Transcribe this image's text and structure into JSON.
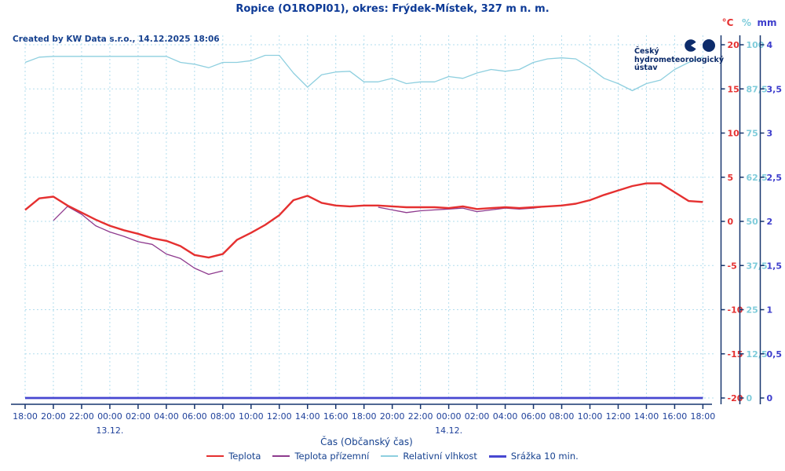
{
  "title": "Ropice (O1ROPI01), okres: Frýdek-Místek, 327 m n. m.",
  "created_by": "Created by KW Data s.r.o., 14.12.2025 18:06",
  "logo": {
    "line1": "Český",
    "line2": "hydrometeorologický",
    "line3": "ústav"
  },
  "axes": {
    "temp": {
      "header": "°C",
      "color": "#e53030",
      "ticks": [
        "20",
        "15",
        "10",
        "5",
        "0",
        "-5",
        "-10",
        "-15",
        "-20"
      ]
    },
    "humidity": {
      "header": "%",
      "color": "#7fccdb",
      "ticks": [
        "100",
        "87,5",
        "75",
        "62,5",
        "50",
        "37,5",
        "25",
        "12,5",
        "0"
      ]
    },
    "precip": {
      "header": "mm",
      "color": "#3d3dcc",
      "ticks": [
        "4",
        "3,5",
        "3",
        "2,5",
        "2",
        "1,5",
        "1",
        "0,5",
        "0"
      ]
    }
  },
  "x_axis": {
    "title": "Čas (Občanský čas)",
    "tick_labels": [
      "18:00",
      "20:00",
      "22:00",
      "00:00",
      "02:00",
      "04:00",
      "06:00",
      "08:00",
      "10:00",
      "12:00",
      "14:00",
      "16:00",
      "18:00",
      "20:00",
      "22:00",
      "00:00",
      "02:00",
      "04:00",
      "06:00",
      "08:00",
      "10:00",
      "12:00",
      "14:00",
      "16:00",
      "18:00"
    ],
    "date_labels": [
      {
        "label": "13.12.",
        "tick_index": 3
      },
      {
        "label": "14.12.",
        "tick_index": 15
      }
    ]
  },
  "legend": [
    {
      "label": "Teplota",
      "color": "#e53030"
    },
    {
      "label": "Teplota přízemní",
      "color": "#8e3a8e"
    },
    {
      "label": "Relativní vlhkost",
      "color": "#8ecfdf"
    },
    {
      "label": "Srážka 10 min.",
      "color": "#4747d1"
    }
  ],
  "chart_data": {
    "type": "line",
    "x_start": "12.12. 18:00",
    "x_end": "14.12. 18:00",
    "x_unit": "hours_from_start",
    "x_step_hours": 1,
    "x_range_hours": [
      0,
      48
    ],
    "grid": true,
    "legend_position": "bottom",
    "y_axes": {
      "temp": {
        "label": "°C",
        "range": [
          -20,
          20
        ]
      },
      "humidity": {
        "label": "%",
        "range": [
          0,
          100
        ]
      },
      "precip": {
        "label": "mm",
        "range": [
          0,
          4
        ]
      }
    },
    "series": [
      {
        "name": "Teplota",
        "unit": "°C",
        "axis": "temp",
        "color": "#e53030",
        "values": [
          1.3,
          2.6,
          2.8,
          1.8,
          1.0,
          0.2,
          -0.5,
          -1.0,
          -1.4,
          -1.9,
          -2.2,
          -2.8,
          -3.8,
          -4.1,
          -3.7,
          -2.1,
          -1.3,
          -0.4,
          0.7,
          2.4,
          2.9,
          2.1,
          1.8,
          1.7,
          1.8,
          1.8,
          1.7,
          1.6,
          1.6,
          1.6,
          1.5,
          1.7,
          1.4,
          1.5,
          1.6,
          1.5,
          1.6,
          1.7,
          1.8,
          2.0,
          2.4,
          3.0,
          3.5,
          4.0,
          4.3,
          4.3,
          3.3,
          2.3,
          2.2
        ]
      },
      {
        "name": "Teplota přízemní",
        "unit": "°C",
        "axis": "temp",
        "color": "#8e3a8e",
        "values": [
          null,
          null,
          0.1,
          1.7,
          0.8,
          -0.5,
          -1.2,
          -1.7,
          -2.3,
          -2.6,
          -3.7,
          -4.2,
          -5.3,
          -6.0,
          -5.6,
          null,
          null,
          null,
          null,
          null,
          null,
          null,
          null,
          null,
          null,
          1.6,
          1.3,
          1.0,
          1.2,
          1.3,
          1.4,
          1.5,
          1.1,
          1.3,
          1.5,
          1.4,
          1.5,
          1.7,
          1.8,
          null,
          null,
          null,
          null,
          null,
          null,
          null,
          null,
          null,
          null
        ]
      },
      {
        "name": "Relativní vlhkost",
        "unit": "%",
        "axis": "humidity",
        "color": "#8ecfdf",
        "values": [
          95,
          96.5,
          96.7,
          96.7,
          96.7,
          96.7,
          96.7,
          96.7,
          96.7,
          96.7,
          96.7,
          95,
          94.5,
          93.5,
          95,
          95,
          95.5,
          97,
          97,
          92,
          88,
          91.5,
          92.3,
          92.5,
          89.5,
          89.5,
          90.5,
          89,
          89.5,
          89.5,
          91,
          90.5,
          92,
          93,
          92.5,
          93,
          95,
          96,
          96.3,
          96,
          93.5,
          90.5,
          89,
          87,
          89,
          90,
          93,
          95,
          96.5
        ]
      },
      {
        "name": "Srážka 10 min.",
        "unit": "mm",
        "axis": "precip",
        "color": "#4747d1",
        "values": [
          0,
          0,
          0,
          0,
          0,
          0,
          0,
          0,
          0,
          0,
          0,
          0,
          0,
          0,
          0,
          0,
          0,
          0,
          0,
          0,
          0,
          0,
          0,
          0,
          0,
          0,
          0,
          0,
          0,
          0,
          0,
          0,
          0,
          0,
          0,
          0,
          0,
          0,
          0,
          0,
          0,
          0,
          0,
          0,
          0,
          0,
          0,
          0,
          0
        ]
      }
    ]
  }
}
